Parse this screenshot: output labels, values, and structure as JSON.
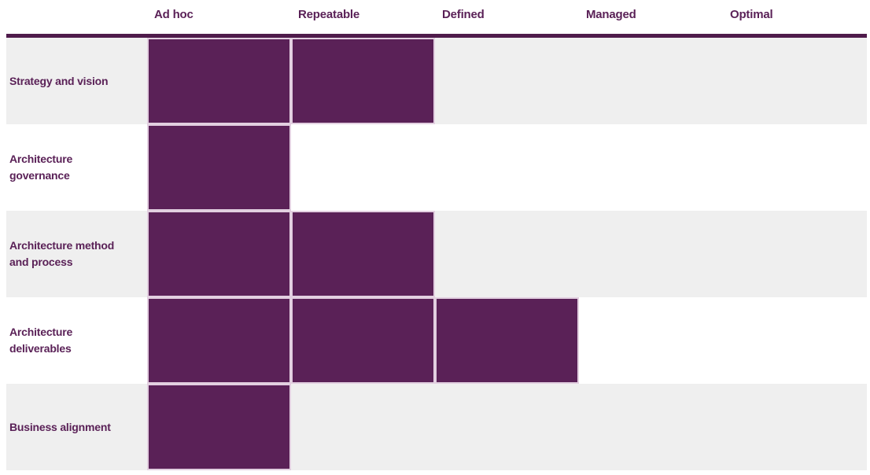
{
  "chart_data": {
    "type": "bar",
    "subtype": "maturity-matrix",
    "orientation": "horizontal",
    "categories": [
      "Strategy and vision",
      "Architecture governance",
      "Architecture method and process",
      "Architecture deliverables",
      "Business alignment"
    ],
    "levels": [
      "Ad hoc",
      "Repeatable",
      "Defined",
      "Managed",
      "Optimal"
    ],
    "values": [
      2,
      1,
      2,
      3,
      1
    ],
    "value_labels": [
      "Repeatable",
      "Ad hoc",
      "Repeatable",
      "Defined",
      "Ad hoc"
    ],
    "title": "",
    "xlabel": "",
    "ylabel": "",
    "xlim": [
      0,
      5
    ],
    "grid": false,
    "legend": false,
    "layout": {
      "row_striping": "gray-white alternating starting gray",
      "header_alignment": "left-aligned over each level column"
    },
    "colors": {
      "fill": "#5a2157",
      "rule": "#4f1b4b",
      "text": "#5a2157",
      "row_alt_bg": "#efefef",
      "row_bg": "#ffffff",
      "cell_border": "#e2cfe0"
    }
  }
}
